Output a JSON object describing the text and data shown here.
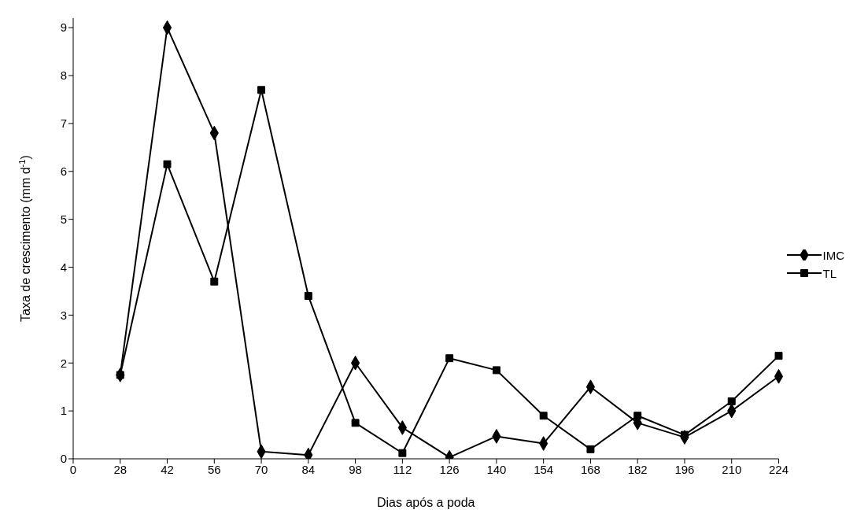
{
  "chart_data": {
    "type": "line",
    "xlabel": "Dias após a poda",
    "ylabel": "Taxa de crescimento (mm d$^{-1}$)",
    "categories": [
      "0",
      "28",
      "42",
      "56",
      "70",
      "84",
      "98",
      "112",
      "126",
      "140",
      "154",
      "168",
      "182",
      "196",
      "210",
      "224"
    ],
    "series": [
      {
        "name": "IMC",
        "color": "#000000",
        "marker": "diamond",
        "values": [
          null,
          1.75,
          9.0,
          6.8,
          0.15,
          0.08,
          2.0,
          0.65,
          0.03,
          0.47,
          0.32,
          1.5,
          0.75,
          0.45,
          1.0,
          1.72
        ]
      },
      {
        "name": "TL",
        "color": "#000000",
        "marker": "square",
        "values": [
          null,
          1.75,
          6.15,
          3.7,
          7.7,
          3.4,
          0.75,
          0.12,
          2.1,
          1.85,
          0.9,
          0.2,
          0.9,
          0.5,
          1.2,
          2.15
        ]
      }
    ],
    "ylim": [
      0,
      9.2
    ],
    "yticks": [
      0,
      1,
      2,
      3,
      4,
      5,
      6,
      7,
      8,
      9
    ],
    "grid": false,
    "legend": "right",
    "line_style": "solid"
  }
}
